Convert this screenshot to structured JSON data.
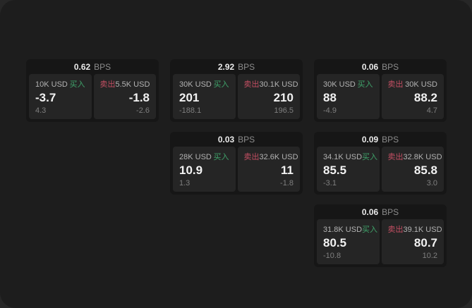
{
  "window": {
    "backdrop_color": "#272727",
    "surface_color": "#1d1d1d"
  },
  "colors": {
    "buy_green": "#3fa26a",
    "sell_red": "#c44f63",
    "card_bg": "#161616",
    "pane_bg": "#252525"
  },
  "labels": {
    "buy": "买入",
    "sell": "卖出",
    "bps_unit": "BPS"
  },
  "cards": [
    {
      "col": 1,
      "row": 1,
      "bps": "0.62",
      "buy": {
        "notional": "10K USD",
        "value": "-3.7",
        "delta": "4.3"
      },
      "sell": {
        "notional": "5.5K USD",
        "value": "-1.8",
        "delta": "-2.6"
      }
    },
    {
      "col": 2,
      "row": 1,
      "bps": "2.92",
      "buy": {
        "notional": "30K USD",
        "value": "201",
        "delta": "-188.1"
      },
      "sell": {
        "notional": "30.1K USD",
        "value": "210",
        "delta": "196.5"
      }
    },
    {
      "col": 3,
      "row": 1,
      "bps": "0.06",
      "buy": {
        "notional": "30K USD",
        "value": "88",
        "delta": "-4.9"
      },
      "sell": {
        "notional": "30K USD",
        "value": "88.2",
        "delta": "4.7"
      }
    },
    {
      "col": 2,
      "row": 2,
      "bps": "0.03",
      "buy": {
        "notional": "28K USD",
        "value": "10.9",
        "delta": "1.3"
      },
      "sell": {
        "notional": "32.6K USD",
        "value": "11",
        "delta": "-1.8"
      }
    },
    {
      "col": 3,
      "row": 2,
      "bps": "0.09",
      "buy": {
        "notional": "34.1K USD",
        "value": "85.5",
        "delta": "-3.1"
      },
      "sell": {
        "notional": "32.8K USD",
        "value": "85.8",
        "delta": "3.0"
      }
    },
    {
      "col": 3,
      "row": 3,
      "bps": "0.06",
      "buy": {
        "notional": "31.8K USD",
        "value": "80.5",
        "delta": "-10.8"
      },
      "sell": {
        "notional": "39.1K USD",
        "value": "80.7",
        "delta": "10.2"
      }
    }
  ]
}
